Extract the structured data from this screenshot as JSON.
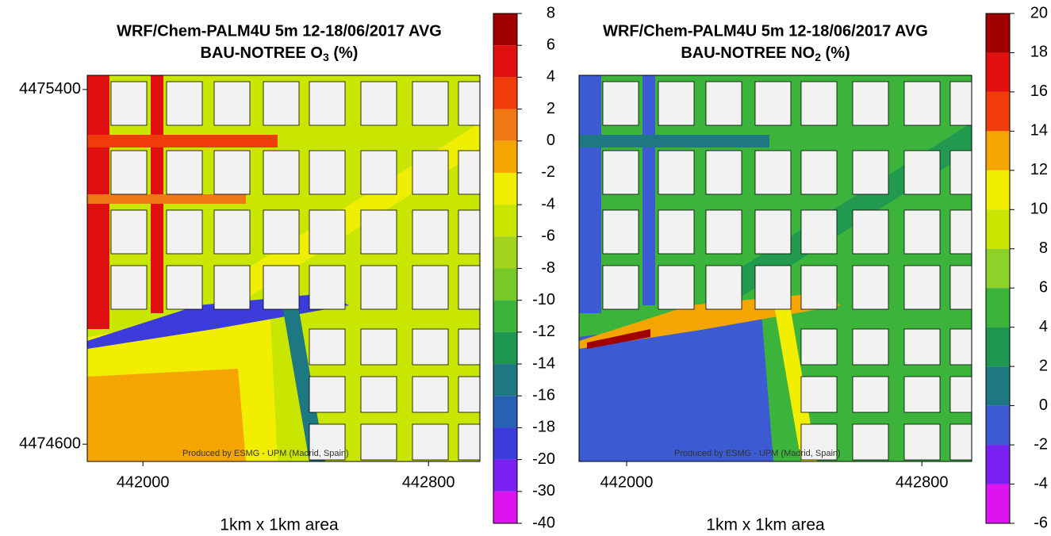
{
  "panels": [
    {
      "title": "WRF/Chem-PALM4U 5m 12-18/06/2017 AVG",
      "subtitle": "BAU-NOTREE O",
      "subtitle_sub": "3",
      "subtitle_end": " (%)",
      "xlim": [
        441844,
        442944
      ],
      "ylim": [
        4474561,
        4475432
      ],
      "xticks": [
        442000,
        442800
      ],
      "yticks": [
        4475400,
        4474600
      ],
      "xlabel": "1km x 1km area",
      "credit": "Produced by ESMG - UPM (Madrid, Spain)",
      "colorbar": {
        "levels": [
          8,
          6,
          4,
          2,
          0,
          -2,
          -4,
          -6,
          -8,
          -10,
          -12,
          -14,
          -16,
          -18,
          -20,
          -30,
          -40
        ],
        "colors": [
          "#a00000",
          "#e01010",
          "#f03c0a",
          "#f07814",
          "#f5a500",
          "#f2ee00",
          "#c8e600",
          "#a0d21e",
          "#78c828",
          "#3cb43c",
          "#1e9650",
          "#1e7882",
          "#2860b4",
          "#3c3cdc",
          "#7820f0",
          "#dc14f0"
        ]
      }
    },
    {
      "title": "WRF/Chem-PALM4U 5m 12-18/06/2017 AVG",
      "subtitle": "BAU-NOTREE NO",
      "subtitle_sub": "2",
      "subtitle_end": " (%)",
      "xlim": [
        441871,
        442935
      ],
      "ylim": [
        4474561,
        4475432
      ],
      "xticks": [
        442000,
        442800
      ],
      "xlabel": "1km x 1km area",
      "credit": "Produced by ESMG - UPM (Madrid, Spain)",
      "colorbar": {
        "levels": [
          20,
          18,
          16,
          14,
          12,
          10,
          8,
          6,
          4,
          2,
          0,
          -2,
          -4,
          -6
        ],
        "colors": [
          "#a00000",
          "#e01010",
          "#f03c0a",
          "#f5a500",
          "#f2ee00",
          "#c8e600",
          "#8cd228",
          "#3cb43c",
          "#1e9650",
          "#1e7882",
          "#3c5ad2",
          "#7820f0",
          "#dc14f0"
        ]
      }
    }
  ]
}
